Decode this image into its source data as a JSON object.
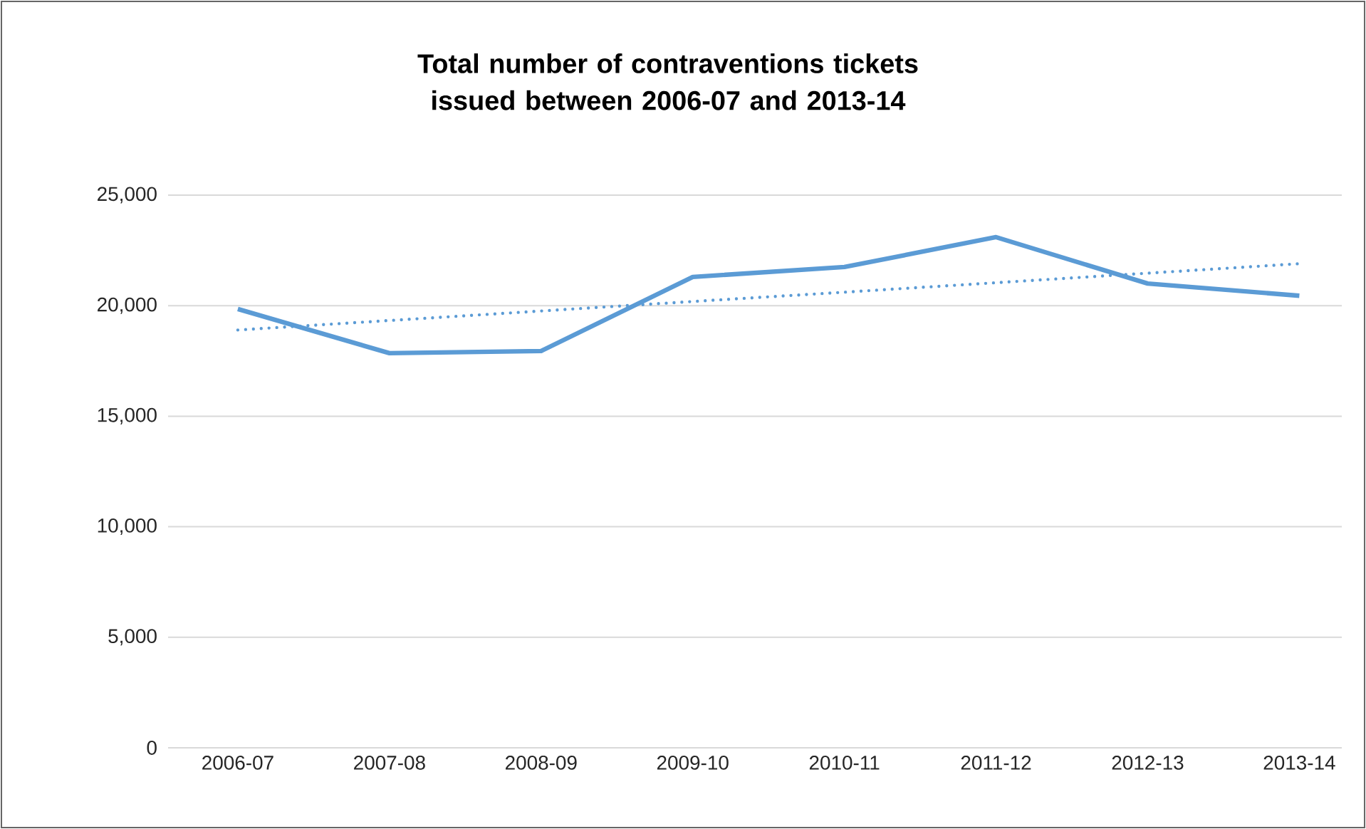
{
  "chart_data": {
    "type": "line",
    "title": "Total number of contraventions tickets issued between 2006-07 and 2013-14",
    "categories": [
      "2006-07",
      "2007-08",
      "2008-09",
      "2009-10",
      "2010-11",
      "2011-12",
      "2012-13",
      "2013-14"
    ],
    "series": [
      {
        "color": "#5b9bd5",
        "line_style": "solid",
        "values": [
          19850,
          17850,
          17950,
          21300,
          21750,
          23100,
          21000,
          20450
        ]
      },
      {
        "color": "#5b9bd5",
        "line_style": "dotted",
        "values": [
          18900,
          19330,
          19760,
          20190,
          20610,
          21040,
          21470,
          21900
        ]
      }
    ],
    "ylim": [
      0,
      25000
    ],
    "yticks": [
      {
        "value": 0,
        "label": "0"
      },
      {
        "value": 5000,
        "label": "5,000"
      },
      {
        "value": 10000,
        "label": "10,000"
      },
      {
        "value": 15000,
        "label": "15,000"
      },
      {
        "value": 20000,
        "label": "20,000"
      },
      {
        "value": 25000,
        "label": "25,000"
      }
    ],
    "grid": "y",
    "marker": "none"
  }
}
